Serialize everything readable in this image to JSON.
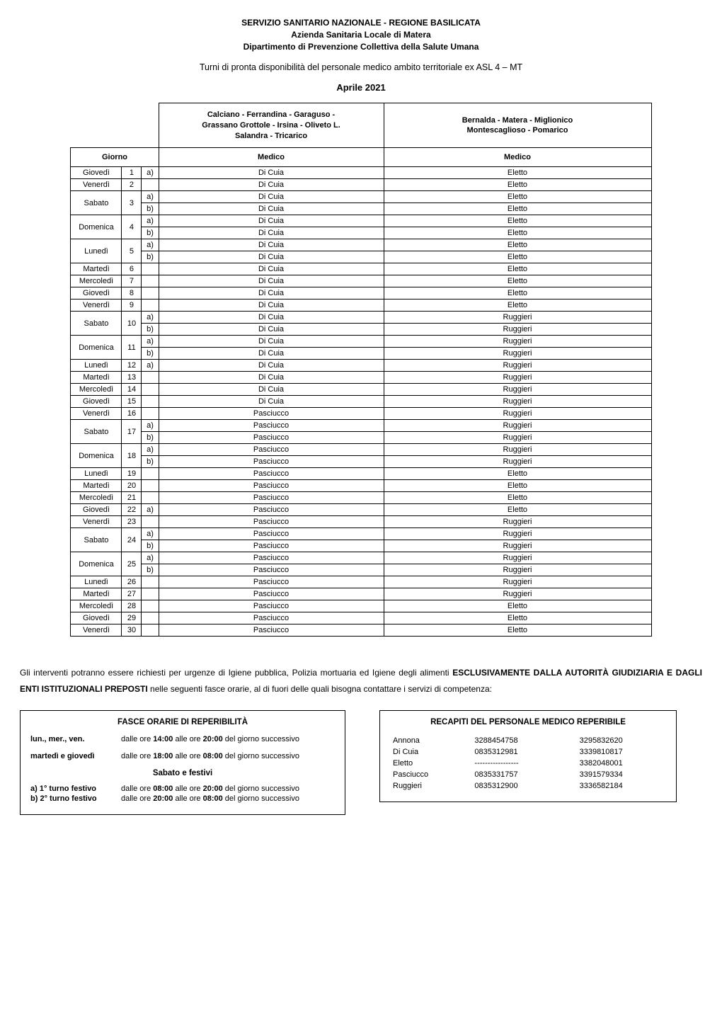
{
  "header": {
    "line1": "SERVIZIO SANITARIO NAZIONALE - REGIONE  BASILICATA",
    "line2": "Azienda Sanitaria Locale di Matera",
    "line3": "Dipartimento di Prevenzione Collettiva della Salute Umana"
  },
  "subheader": "Turni di pronta disponibilità del personale medico ambito territoriale ex ASL 4 – MT",
  "month": "Aprile 2021",
  "table": {
    "zone1": "Calciano - Ferrandina - Garaguso -\nGrassano Grottole - Irsina - Oliveto L.\nSalandra - Tricarico",
    "zone2": "Bernalda - Matera - Miglionico\nMontescaglioso - Pomarico",
    "col_giorno": "Giorno",
    "col_medico": "Medico",
    "rows": [
      {
        "day": "Giovedì",
        "num": "1",
        "sub": [
          {
            "ab": "a)",
            "m1": "Di Cuia",
            "m2": "Eletto"
          }
        ]
      },
      {
        "day": "Venerdì",
        "num": "2",
        "sub": [
          {
            "ab": "",
            "m1": "Di Cuia",
            "m2": "Eletto"
          }
        ]
      },
      {
        "day": "Sabato",
        "num": "3",
        "sub": [
          {
            "ab": "a)",
            "m1": "Di Cuia",
            "m2": "Eletto"
          },
          {
            "ab": "b)",
            "m1": "Di Cuia",
            "m2": "Eletto"
          }
        ]
      },
      {
        "day": "Domenica",
        "num": "4",
        "sub": [
          {
            "ab": "a)",
            "m1": "Di Cuia",
            "m2": "Eletto"
          },
          {
            "ab": "b)",
            "m1": "Di Cuia",
            "m2": "Eletto"
          }
        ]
      },
      {
        "day": "Lunedì",
        "num": "5",
        "sub": [
          {
            "ab": "a)",
            "m1": "Di Cuia",
            "m2": "Eletto"
          },
          {
            "ab": "b)",
            "m1": "Di Cuia",
            "m2": "Eletto"
          }
        ]
      },
      {
        "day": "Martedì",
        "num": "6",
        "sub": [
          {
            "ab": "",
            "m1": "Di Cuia",
            "m2": "Eletto"
          }
        ]
      },
      {
        "day": "Mercoledì",
        "num": "7",
        "sub": [
          {
            "ab": "",
            "m1": "Di Cuia",
            "m2": "Eletto"
          }
        ]
      },
      {
        "day": "Giovedì",
        "num": "8",
        "sub": [
          {
            "ab": "",
            "m1": "Di Cuia",
            "m2": "Eletto"
          }
        ]
      },
      {
        "day": "Venerdì",
        "num": "9",
        "sub": [
          {
            "ab": "",
            "m1": "Di Cuia",
            "m2": "Eletto"
          }
        ]
      },
      {
        "day": "Sabato",
        "num": "10",
        "sub": [
          {
            "ab": "a)",
            "m1": "Di Cuia",
            "m2": "Ruggieri"
          },
          {
            "ab": "b)",
            "m1": "Di Cuia",
            "m2": "Ruggieri"
          }
        ]
      },
      {
        "day": "Domenica",
        "num": "11",
        "sub": [
          {
            "ab": "a)",
            "m1": "Di Cuia",
            "m2": "Ruggieri"
          },
          {
            "ab": "b)",
            "m1": "Di Cuia",
            "m2": "Ruggieri"
          }
        ]
      },
      {
        "day": "Lunedì",
        "num": "12",
        "sub": [
          {
            "ab": "a)",
            "m1": "Di Cuia",
            "m2": "Ruggieri"
          }
        ]
      },
      {
        "day": "Martedì",
        "num": "13",
        "sub": [
          {
            "ab": "",
            "m1": "Di Cuia",
            "m2": "Ruggieri"
          }
        ]
      },
      {
        "day": "Mercoledì",
        "num": "14",
        "sub": [
          {
            "ab": "",
            "m1": "Di Cuia",
            "m2": "Ruggieri"
          }
        ]
      },
      {
        "day": "Giovedì",
        "num": "15",
        "sub": [
          {
            "ab": "",
            "m1": "Di Cuia",
            "m2": "Ruggieri"
          }
        ]
      },
      {
        "day": "Venerdì",
        "num": "16",
        "sub": [
          {
            "ab": "",
            "m1": "Pasciucco",
            "m2": "Ruggieri"
          }
        ]
      },
      {
        "day": "Sabato",
        "num": "17",
        "sub": [
          {
            "ab": "a)",
            "m1": "Pasciucco",
            "m2": "Ruggieri"
          },
          {
            "ab": "b)",
            "m1": "Pasciucco",
            "m2": "Ruggieri"
          }
        ]
      },
      {
        "day": "Domenica",
        "num": "18",
        "sub": [
          {
            "ab": "a)",
            "m1": "Pasciucco",
            "m2": "Ruggieri"
          },
          {
            "ab": "b)",
            "m1": "Pasciucco",
            "m2": "Ruggieri"
          }
        ]
      },
      {
        "day": "Lunedì",
        "num": "19",
        "sub": [
          {
            "ab": "",
            "m1": "Pasciucco",
            "m2": "Eletto"
          }
        ]
      },
      {
        "day": "Martedì",
        "num": "20",
        "sub": [
          {
            "ab": "",
            "m1": "Pasciucco",
            "m2": "Eletto"
          }
        ]
      },
      {
        "day": "Mercoledì",
        "num": "21",
        "sub": [
          {
            "ab": "",
            "m1": "Pasciucco",
            "m2": "Eletto"
          }
        ]
      },
      {
        "day": "Giovedì",
        "num": "22",
        "sub": [
          {
            "ab": "a)",
            "m1": "Pasciucco",
            "m2": "Eletto"
          }
        ]
      },
      {
        "day": "Venerdì",
        "num": "23",
        "sub": [
          {
            "ab": "",
            "m1": "Pasciucco",
            "m2": "Ruggieri"
          }
        ]
      },
      {
        "day": "Sabato",
        "num": "24",
        "sub": [
          {
            "ab": "a)",
            "m1": "Pasciucco",
            "m2": "Ruggieri"
          },
          {
            "ab": "b)",
            "m1": "Pasciucco",
            "m2": "Ruggieri"
          }
        ]
      },
      {
        "day": "Domenica",
        "num": "25",
        "sub": [
          {
            "ab": "a)",
            "m1": "Pasciucco",
            "m2": "Ruggieri"
          },
          {
            "ab": "b)",
            "m1": "Pasciucco",
            "m2": "Ruggieri"
          }
        ]
      },
      {
        "day": "Lunedì",
        "num": "26",
        "sub": [
          {
            "ab": "",
            "m1": "Pasciucco",
            "m2": "Ruggieri"
          }
        ]
      },
      {
        "day": "Martedì",
        "num": "27",
        "sub": [
          {
            "ab": "",
            "m1": "Pasciucco",
            "m2": "Ruggieri"
          }
        ]
      },
      {
        "day": "Mercoledì",
        "num": "28",
        "sub": [
          {
            "ab": "",
            "m1": "Pasciucco",
            "m2": "Eletto"
          }
        ]
      },
      {
        "day": "Giovedì",
        "num": "29",
        "sub": [
          {
            "ab": "",
            "m1": "Pasciucco",
            "m2": "Eletto"
          }
        ]
      },
      {
        "day": "Venerdì",
        "num": "30",
        "sub": [
          {
            "ab": "",
            "m1": "Pasciucco",
            "m2": "Eletto"
          }
        ]
      }
    ]
  },
  "notes": {
    "pre": "Gli interventi potranno essere richiesti per urgenze di Igiene pubblica, Polizia mortuaria ed Igiene degli alimenti ",
    "bold": "ESCLUSIVAMENTE DALLA AUTORITÀ GIUDIZIARIA E DAGLI ENTI ISTITUZIONALI PREPOSTI",
    "post": " nelle seguenti fasce orarie, al di fuori delle quali bisogna contattare i servizi di competenza:"
  },
  "fasce": {
    "title": "FASCE ORARIE DI REPERIBILITÀ",
    "rows": [
      {
        "label": "lun., mer., ven.",
        "pre": "dalle ore ",
        "b1": "14:00",
        "mid": " alle ore ",
        "b2": "20:00",
        "post": " del giorno successivo"
      },
      {
        "label": "martedì e giovedì",
        "pre": "dalle ore ",
        "b1": "18:00",
        "mid": " alle ore ",
        "b2": "08:00",
        "post": " del giorno successivo"
      }
    ],
    "sabato_title": "Sabato e festivi",
    "sabato_rows": [
      {
        "label": "a) 1° turno festivo",
        "pre": "dalle ore ",
        "b1": "08:00",
        "mid": " alle ore ",
        "b2": "20:00",
        "post": " del giorno successivo"
      },
      {
        "label": "b) 2° turno festivo",
        "pre": "dalle ore ",
        "b1": "20:00",
        "mid": " alle ore ",
        "b2": "08:00",
        "post": " del giorno successivo"
      }
    ]
  },
  "recapiti": {
    "title": "RECAPITI DEL PERSONALE MEDICO REPERIBILE",
    "rows": [
      {
        "name": "Annona",
        "tel1": "3288454758",
        "tel2": "3295832620"
      },
      {
        "name": "Di Cuia",
        "tel1": "0835312981",
        "tel2": "3339810817"
      },
      {
        "name": "Eletto",
        "tel1": "-----------------",
        "tel2": "3382048001"
      },
      {
        "name": "Pasciucco",
        "tel1": "0835331757",
        "tel2": "3391579334"
      },
      {
        "name": "Ruggieri",
        "tel1": "0835312900",
        "tel2": "3336582184"
      }
    ]
  }
}
